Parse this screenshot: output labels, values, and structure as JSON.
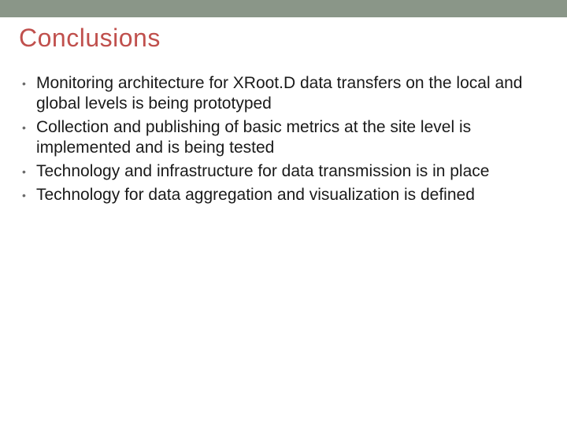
{
  "slide": {
    "title": "Conclusions",
    "title_color": "#c0504d",
    "title_fontsize": 32,
    "topbar_color": "#8a9688",
    "topbar_height": 22,
    "body_fontsize": 21,
    "body_lineheight": 26,
    "body_color": "#1a1a1a",
    "bullet_color": "#6b6b6b",
    "background_color": "#ffffff",
    "bullets": [
      "Monitoring architecture for  XRoot.D data transfers on the local and global levels is being prototyped",
      "Collection and publishing of basic metrics at the site level is implemented and is being tested",
      "Technology and infrastructure for data transmission is in place",
      "Technology for data aggregation and visualization is defined"
    ]
  }
}
